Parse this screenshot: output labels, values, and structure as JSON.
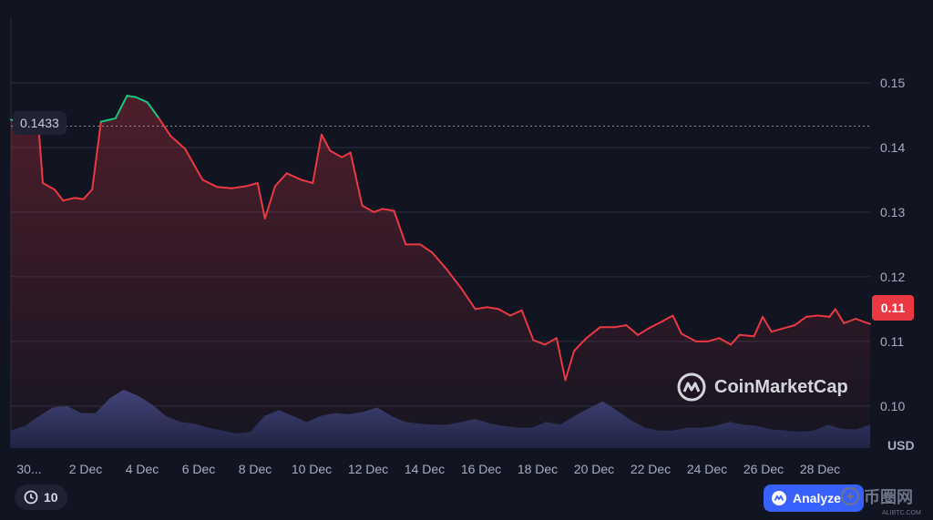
{
  "chart_data": {
    "type": "line",
    "currency": "USD",
    "reference_price": "0.1433",
    "current_price": "0.11",
    "y_ticks": [
      "0.15",
      "0.14",
      "0.13",
      "0.12",
      "0.11",
      "0.10"
    ],
    "ylim": [
      0.0935,
      0.16
    ],
    "x_ticks": [
      "30...",
      "2 Dec",
      "4 Dec",
      "6 Dec",
      "8 Dec",
      "10 Dec",
      "12 Dec",
      "14 Dec",
      "16 Dec",
      "18 Dec",
      "20 Dec",
      "22 Dec",
      "24 Dec",
      "26 Dec",
      "28 Dec"
    ],
    "x_day_range": [
      30.2,
      59.8
    ],
    "price_series": [
      [
        30.2,
        0.1443
      ],
      [
        30.6,
        0.1438
      ],
      [
        31.0,
        0.1439
      ],
      [
        31.15,
        0.1432
      ],
      [
        31.3,
        0.1345
      ],
      [
        31.7,
        0.1335
      ],
      [
        32.0,
        0.1318
      ],
      [
        32.4,
        0.1322
      ],
      [
        32.7,
        0.132
      ],
      [
        33.0,
        0.1335
      ],
      [
        33.3,
        0.144
      ],
      [
        33.8,
        0.1445
      ],
      [
        34.2,
        0.148
      ],
      [
        34.5,
        0.1478
      ],
      [
        34.9,
        0.147
      ],
      [
        35.3,
        0.1445
      ],
      [
        35.7,
        0.1418
      ],
      [
        36.2,
        0.1398
      ],
      [
        36.8,
        0.135
      ],
      [
        37.3,
        0.1339
      ],
      [
        37.8,
        0.1337
      ],
      [
        38.3,
        0.134
      ],
      [
        38.7,
        0.1345
      ],
      [
        38.95,
        0.129
      ],
      [
        39.3,
        0.134
      ],
      [
        39.7,
        0.136
      ],
      [
        40.2,
        0.135
      ],
      [
        40.6,
        0.1345
      ],
      [
        40.9,
        0.142
      ],
      [
        41.2,
        0.1395
      ],
      [
        41.6,
        0.1385
      ],
      [
        41.9,
        0.1392
      ],
      [
        42.3,
        0.131
      ],
      [
        42.7,
        0.13
      ],
      [
        43.0,
        0.1305
      ],
      [
        43.4,
        0.1302
      ],
      [
        43.8,
        0.125
      ],
      [
        44.3,
        0.125
      ],
      [
        44.7,
        0.1238
      ],
      [
        45.2,
        0.1212
      ],
      [
        45.7,
        0.1183
      ],
      [
        46.2,
        0.115
      ],
      [
        46.6,
        0.1153
      ],
      [
        47.0,
        0.115
      ],
      [
        47.4,
        0.114
      ],
      [
        47.8,
        0.1148
      ],
      [
        48.2,
        0.1102
      ],
      [
        48.6,
        0.1095
      ],
      [
        49.0,
        0.1105
      ],
      [
        49.3,
        0.104
      ],
      [
        49.6,
        0.1085
      ],
      [
        50.0,
        0.1104
      ],
      [
        50.5,
        0.1122
      ],
      [
        51.0,
        0.1122
      ],
      [
        51.4,
        0.1125
      ],
      [
        51.8,
        0.111
      ],
      [
        52.2,
        0.1121
      ],
      [
        52.6,
        0.113
      ],
      [
        53.0,
        0.114
      ],
      [
        53.3,
        0.1112
      ],
      [
        53.8,
        0.11
      ],
      [
        54.2,
        0.11
      ],
      [
        54.6,
        0.1105
      ],
      [
        55.0,
        0.1095
      ],
      [
        55.3,
        0.111
      ],
      [
        55.8,
        0.1108
      ],
      [
        56.1,
        0.1138
      ],
      [
        56.4,
        0.1115
      ],
      [
        56.8,
        0.112
      ],
      [
        57.2,
        0.1125
      ],
      [
        57.6,
        0.1138
      ],
      [
        58.0,
        0.114
      ],
      [
        58.4,
        0.1138
      ],
      [
        58.6,
        0.115
      ],
      [
        58.9,
        0.1128
      ],
      [
        59.3,
        0.1135
      ],
      [
        59.6,
        0.113
      ],
      [
        59.8,
        0.1127
      ]
    ],
    "volume_series": [
      0.3,
      0.38,
      0.55,
      0.7,
      0.72,
      0.6,
      0.6,
      0.85,
      1.0,
      0.9,
      0.75,
      0.55,
      0.45,
      0.42,
      0.35,
      0.3,
      0.25,
      0.28,
      0.55,
      0.65,
      0.55,
      0.45,
      0.55,
      0.6,
      0.58,
      0.62,
      0.7,
      0.55,
      0.45,
      0.42,
      0.4,
      0.4,
      0.45,
      0.5,
      0.42,
      0.38,
      0.35,
      0.35,
      0.45,
      0.4,
      0.55,
      0.68,
      0.8,
      0.65,
      0.48,
      0.35,
      0.3,
      0.3,
      0.35,
      0.35,
      0.38,
      0.45,
      0.4,
      0.38,
      0.32,
      0.3,
      0.28,
      0.3,
      0.4,
      0.33,
      0.32,
      0.4
    ],
    "colors": {
      "up": "#16c784",
      "down": "#ea3943",
      "volume": "#2e3a66",
      "grid": "#2a2e3f"
    }
  },
  "ui": {
    "history_button_label": "10",
    "analyze_button_label": "Analyze",
    "watermark_text": "CoinMarketCap",
    "corner_logo_text": "币圈网",
    "corner_logo_sub": "ALIBTC.COM"
  }
}
